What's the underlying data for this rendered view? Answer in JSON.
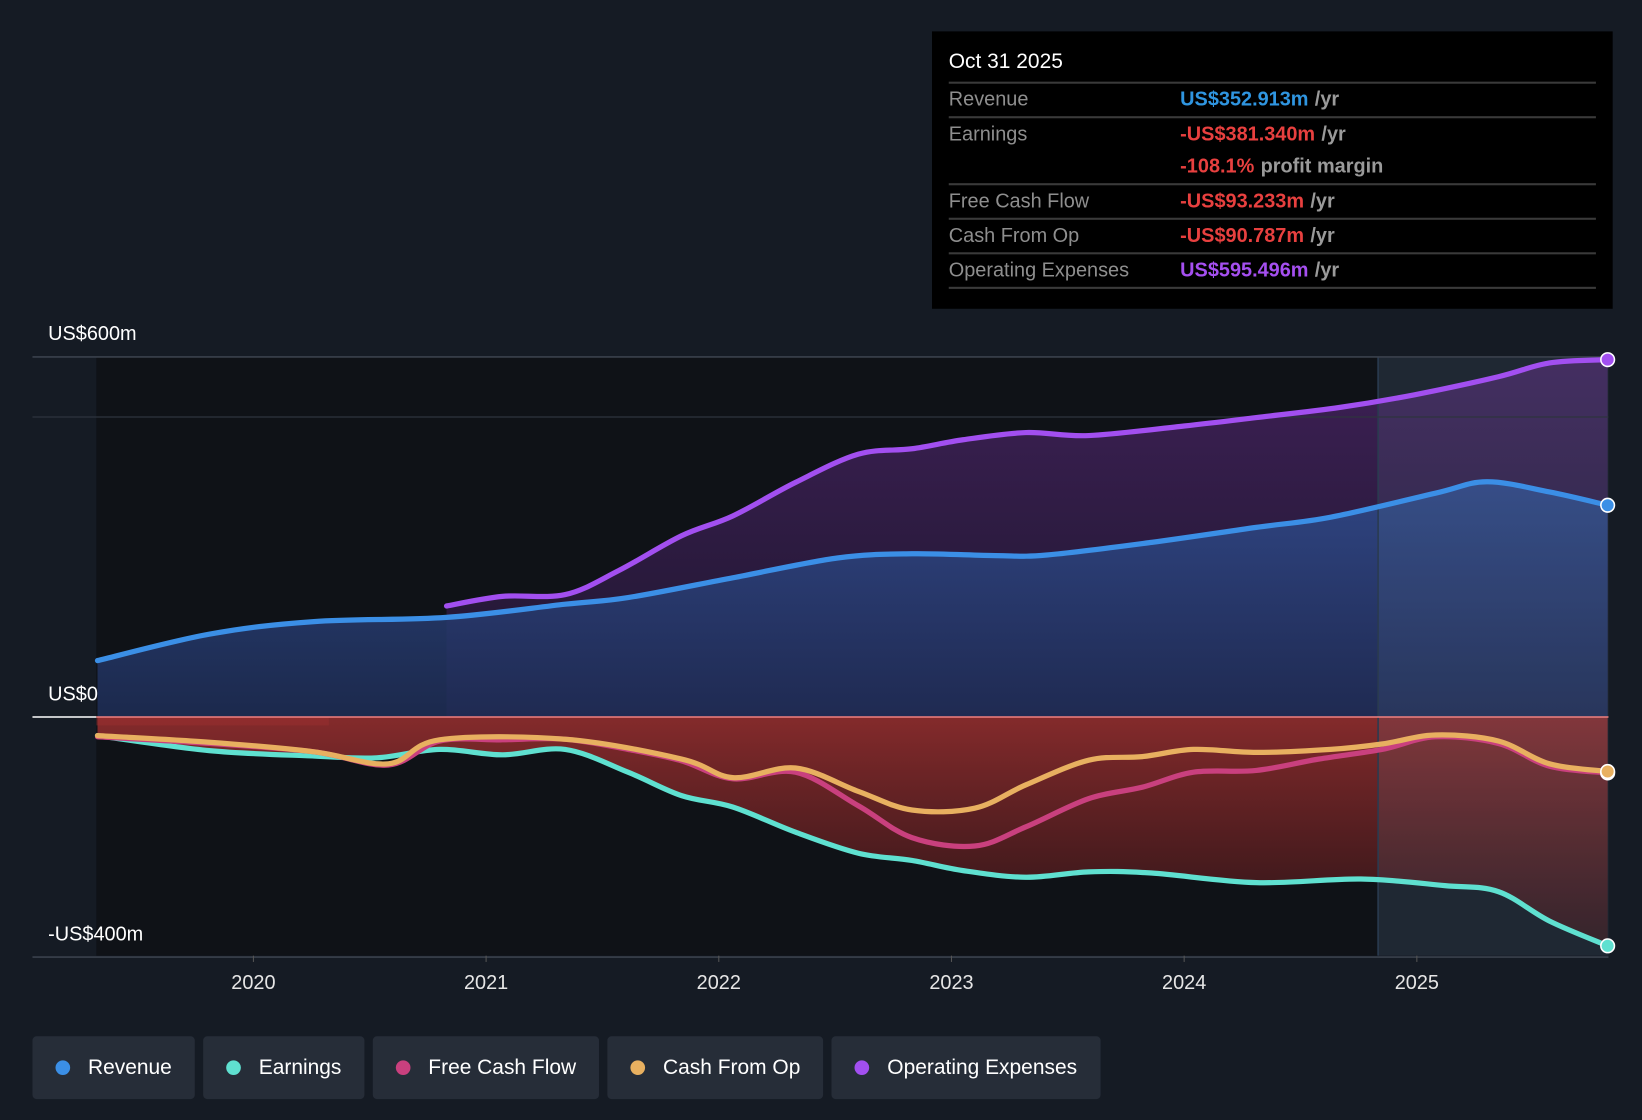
{
  "tooltip": {
    "date": "Oct 31 2025",
    "rows": [
      {
        "label": "Revenue",
        "value": "US$352.913m",
        "unit": "/yr"
      },
      {
        "label": "Earnings",
        "value": "-US$381.340m",
        "unit": "/yr"
      },
      {
        "label": "",
        "value": "-108.1%",
        "unit": "profit margin"
      },
      {
        "label": "Free Cash Flow",
        "value": "-US$93.233m",
        "unit": "/yr"
      },
      {
        "label": "Cash From Op",
        "value": "-US$90.787m",
        "unit": "/yr"
      },
      {
        "label": "Operating Expenses",
        "value": "US$595.496m",
        "unit": "/yr"
      }
    ]
  },
  "colors": {
    "revenue": "#3b8fe6",
    "earnings": "#5fe0d0",
    "fcf": "#c9407e",
    "cfo": "#e8b060",
    "opex": "#a24ff0",
    "negative": "#e04545",
    "background": "#151b24"
  },
  "chart_data": {
    "type": "line",
    "title": "",
    "ylim": [
      -400,
      600
    ],
    "y_ticks": [
      {
        "value": 600,
        "label": "US$600m"
      },
      {
        "value": 0,
        "label": "US$0"
      },
      {
        "value": -400,
        "label": "-US$400m"
      }
    ],
    "x_ticks": [
      {
        "value": 2020,
        "label": "2020"
      },
      {
        "value": 2021,
        "label": "2021"
      },
      {
        "value": 2022,
        "label": "2022"
      },
      {
        "value": 2023,
        "label": "2023"
      },
      {
        "value": 2024,
        "label": "2024"
      },
      {
        "value": 2025,
        "label": "2025"
      }
    ],
    "xlim": [
      2019.33,
      2025.83
    ],
    "legend_position": "bottom",
    "series": [
      {
        "key": "opex",
        "name": "Operating Expenses",
        "x": [
          2020.83,
          2021.07,
          2021.34,
          2021.57,
          2021.84,
          2022.06,
          2022.33,
          2022.6,
          2022.83,
          2023.05,
          2023.32,
          2023.59,
          2024.0,
          2024.31,
          2024.67,
          2024.99,
          2025.35,
          2025.57,
          2025.82
        ],
        "y": [
          185,
          201,
          204,
          244,
          302,
          335,
          391,
          438,
          447,
          462,
          474,
          469,
          485,
          499,
          516,
          537,
          567,
          590,
          595.5
        ]
      },
      {
        "key": "revenue",
        "name": "Revenue",
        "x": [
          2019.33,
          2019.81,
          2020.26,
          2020.83,
          2021.34,
          2021.61,
          2022.06,
          2022.51,
          2022.83,
          2023.19,
          2023.41,
          2023.86,
          2024.31,
          2024.63,
          2025.08,
          2025.3,
          2025.57,
          2025.82
        ],
        "y": [
          94,
          138,
          159,
          166,
          188,
          199,
          232,
          265,
          272,
          269,
          270,
          291,
          316,
          333,
          373,
          392,
          375,
          352.9
        ]
      },
      {
        "key": "earnings",
        "name": "Earnings",
        "x": [
          2019.33,
          2019.81,
          2020.26,
          2020.53,
          2020.8,
          2021.07,
          2021.34,
          2021.61,
          2021.84,
          2022.06,
          2022.33,
          2022.6,
          2022.83,
          2023.05,
          2023.32,
          2023.59,
          2023.86,
          2024.31,
          2024.76,
          2025.12,
          2025.35,
          2025.57,
          2025.82
        ],
        "y": [
          -31,
          -56,
          -65,
          -68,
          -54,
          -63,
          -54,
          -92,
          -131,
          -150,
          -192,
          -227,
          -239,
          -256,
          -267,
          -258,
          -260,
          -276,
          -270,
          -281,
          -291,
          -340,
          -381.3
        ]
      },
      {
        "key": "fcf",
        "name": "Free Cash Flow",
        "x": [
          2019.33,
          2019.81,
          2020.26,
          2020.58,
          2020.8,
          2021.07,
          2021.34,
          2021.61,
          2021.84,
          2022.06,
          2022.33,
          2022.6,
          2022.83,
          2023.1,
          2023.32,
          2023.59,
          2023.82,
          2024.04,
          2024.31,
          2024.58,
          2024.85,
          2025.08,
          2025.35,
          2025.57,
          2025.82
        ],
        "y": [
          -33,
          -44,
          -58,
          -80,
          -40,
          -38,
          -37,
          -54,
          -73,
          -103,
          -92,
          -148,
          -201,
          -215,
          -183,
          -136,
          -117,
          -92,
          -89,
          -70,
          -54,
          -33,
          -44,
          -82,
          -93.2
        ]
      },
      {
        "key": "cfo",
        "name": "Cash From Op",
        "x": [
          2019.33,
          2019.81,
          2020.26,
          2020.58,
          2020.8,
          2021.34,
          2021.84,
          2022.06,
          2022.33,
          2022.6,
          2022.83,
          2023.1,
          2023.32,
          2023.59,
          2023.82,
          2024.04,
          2024.31,
          2024.63,
          2024.85,
          2025.08,
          2025.35,
          2025.57,
          2025.82
        ],
        "y": [
          -31,
          -42,
          -58,
          -78,
          -38,
          -37,
          -70,
          -101,
          -85,
          -124,
          -155,
          -152,
          -113,
          -72,
          -66,
          -54,
          -59,
          -54,
          -45,
          -30,
          -40,
          -78,
          -90.8
        ]
      }
    ]
  },
  "legend": [
    {
      "key": "revenue",
      "label": "Revenue"
    },
    {
      "key": "earnings",
      "label": "Earnings"
    },
    {
      "key": "fcf",
      "label": "Free Cash Flow"
    },
    {
      "key": "cfo",
      "label": "Cash From Op"
    },
    {
      "key": "opex",
      "label": "Operating Expenses"
    }
  ]
}
